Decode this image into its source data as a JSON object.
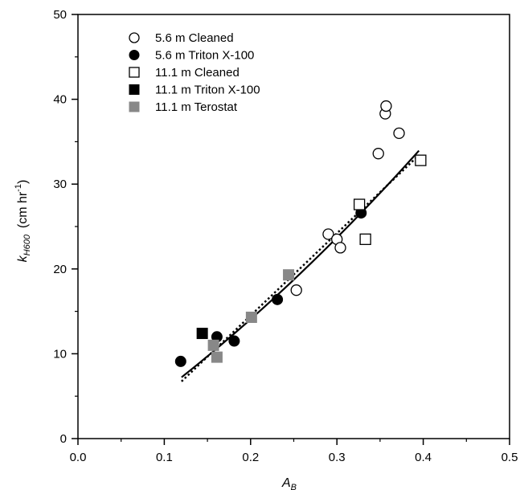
{
  "chart_data": {
    "type": "scatter",
    "xlabel": {
      "main": "A",
      "sub": "B"
    },
    "ylabel": {
      "main": "k",
      "sub": "H600",
      "unit_prefix": "(cm hr",
      "unit_sup": "-1",
      "unit_suffix": ")"
    },
    "xlim": [
      0.0,
      0.5
    ],
    "ylim": [
      0,
      50
    ],
    "xticks": [
      "0.0",
      "0.1",
      "0.2",
      "0.3",
      "0.4",
      "0.5"
    ],
    "yticks": [
      "0",
      "10",
      "20",
      "30",
      "40",
      "50"
    ],
    "grid": false,
    "legend_position": "top-left",
    "series": [
      {
        "name": "5.6 m Cleaned",
        "marker": "circle-open",
        "color": "#000000",
        "points": [
          [
            0.253,
            17.5
          ],
          [
            0.29,
            24.1
          ],
          [
            0.3,
            23.5
          ],
          [
            0.304,
            22.5
          ],
          [
            0.348,
            33.6
          ],
          [
            0.356,
            38.3
          ],
          [
            0.357,
            39.2
          ],
          [
            0.372,
            36.0
          ]
        ]
      },
      {
        "name": "5.6 m Triton X-100",
        "marker": "circle-filled",
        "color": "#000000",
        "points": [
          [
            0.119,
            9.1
          ],
          [
            0.161,
            12.0
          ],
          [
            0.181,
            11.5
          ],
          [
            0.231,
            16.4
          ],
          [
            0.328,
            26.6
          ]
        ]
      },
      {
        "name": "11.1 m Cleaned",
        "marker": "square-open",
        "color": "#000000",
        "points": [
          [
            0.326,
            27.6
          ],
          [
            0.333,
            23.5
          ],
          [
            0.397,
            32.8
          ]
        ]
      },
      {
        "name": "11.1 m Triton X-100",
        "marker": "square-filled",
        "color": "#000000",
        "points": [
          [
            0.144,
            12.4
          ]
        ]
      },
      {
        "name": "11.1 m Terostat",
        "marker": "square-filled",
        "color": "#888888",
        "points": [
          [
            0.157,
            11.0
          ],
          [
            0.161,
            9.6
          ],
          [
            0.201,
            14.3
          ],
          [
            0.244,
            19.3
          ]
        ]
      }
    ],
    "fit_lines": [
      {
        "style": "solid",
        "color": "#000000",
        "x_range": [
          0.12,
          0.395
        ],
        "coeffs": [
          -1.6,
          66.4,
          59.7
        ]
      },
      {
        "style": "dotted",
        "color": "#000000",
        "x_range": [
          0.12,
          0.395
        ],
        "coeffs": [
          -4.9,
          97.0,
          0
        ]
      }
    ]
  }
}
